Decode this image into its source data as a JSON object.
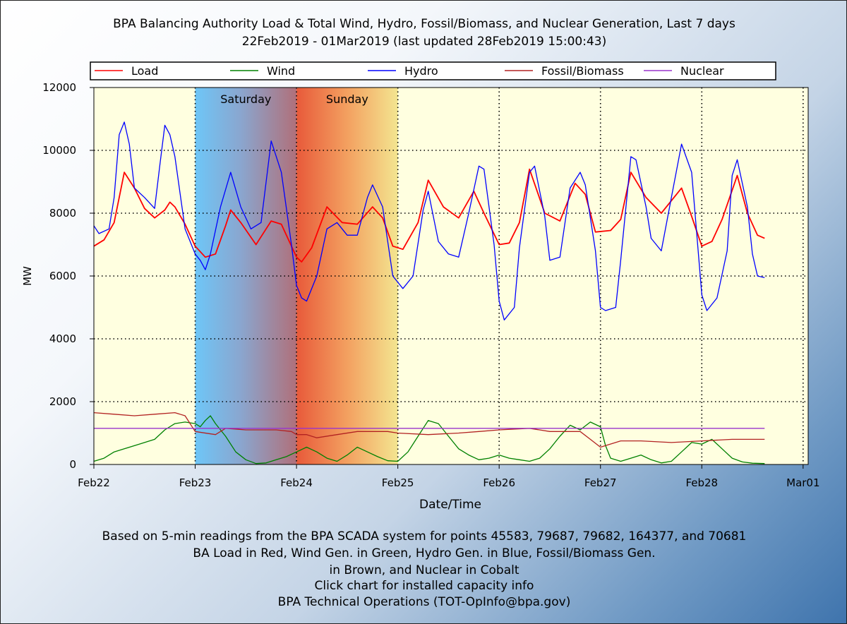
{
  "title_line1": "BPA Balancing Authority Load & Total Wind, Hydro, Fossil/Biomass, and Nuclear Generation, Last 7 days",
  "title_line2": "22Feb2019 - 01Mar2019 (last updated 28Feb2019 15:00:43)",
  "footer": [
    "Based on 5-min readings from the BPA SCADA system for points 45583, 79687, 79682, 164377, and 70681",
    "BA Load in Red, Wind Gen. in Green, Hydro Gen. in Blue, Fossil/Biomass Gen.",
    "in Brown, and Nuclear in Cobalt",
    "Click chart for installed capacity info",
    "BPA Technical Operations (TOT-OpInfo@bpa.gov)"
  ],
  "chart_data": {
    "type": "line",
    "xlabel": "Date/Time",
    "ylabel": "MW",
    "ylim": [
      0,
      12000
    ],
    "xlim": [
      0,
      7.05
    ],
    "x_unit": "days since Feb22 00:00",
    "yticks": [
      0,
      2000,
      4000,
      6000,
      8000,
      10000,
      12000
    ],
    "xticks": [
      {
        "label": "Feb22",
        "x": 0
      },
      {
        "label": "Feb23",
        "x": 1
      },
      {
        "label": "Feb24",
        "x": 2
      },
      {
        "label": "Feb25",
        "x": 3
      },
      {
        "label": "Feb26",
        "x": 4
      },
      {
        "label": "Feb27",
        "x": 5
      },
      {
        "label": "Feb28",
        "x": 6
      },
      {
        "label": "Mar01",
        "x": 7
      }
    ],
    "grid": true,
    "legend_position": "top",
    "weekend_bands": [
      {
        "label": "Saturday",
        "start": 1,
        "end": 2
      },
      {
        "label": "Sunday",
        "start": 2,
        "end": 3
      }
    ],
    "series": [
      {
        "name": "Load",
        "color": "#ff0000",
        "points": [
          [
            0,
            6950
          ],
          [
            0.1,
            7150
          ],
          [
            0.2,
            7700
          ],
          [
            0.3,
            9300
          ],
          [
            0.4,
            8800
          ],
          [
            0.5,
            8150
          ],
          [
            0.6,
            7850
          ],
          [
            0.7,
            8100
          ],
          [
            0.75,
            8350
          ],
          [
            0.8,
            8200
          ],
          [
            0.9,
            7650
          ],
          [
            1.0,
            6950
          ],
          [
            1.1,
            6600
          ],
          [
            1.2,
            6700
          ],
          [
            1.3,
            7600
          ],
          [
            1.35,
            8100
          ],
          [
            1.45,
            7700
          ],
          [
            1.6,
            7000
          ],
          [
            1.75,
            7750
          ],
          [
            1.85,
            7650
          ],
          [
            2.0,
            6600
          ],
          [
            2.05,
            6450
          ],
          [
            2.15,
            6900
          ],
          [
            2.3,
            8200
          ],
          [
            2.45,
            7700
          ],
          [
            2.6,
            7650
          ],
          [
            2.75,
            8200
          ],
          [
            2.85,
            7850
          ],
          [
            2.95,
            6950
          ],
          [
            3.05,
            6850
          ],
          [
            3.2,
            7700
          ],
          [
            3.3,
            9050
          ],
          [
            3.45,
            8200
          ],
          [
            3.6,
            7850
          ],
          [
            3.75,
            8700
          ],
          [
            3.85,
            8000
          ],
          [
            4.0,
            7000
          ],
          [
            4.1,
            7050
          ],
          [
            4.2,
            7700
          ],
          [
            4.3,
            9400
          ],
          [
            4.45,
            8000
          ],
          [
            4.6,
            7750
          ],
          [
            4.75,
            8950
          ],
          [
            4.85,
            8600
          ],
          [
            4.95,
            7400
          ],
          [
            5.1,
            7450
          ],
          [
            5.2,
            7800
          ],
          [
            5.3,
            9300
          ],
          [
            5.45,
            8500
          ],
          [
            5.6,
            8000
          ],
          [
            5.8,
            8800
          ],
          [
            5.9,
            7900
          ],
          [
            6.0,
            6950
          ],
          [
            6.1,
            7100
          ],
          [
            6.2,
            7800
          ],
          [
            6.35,
            9200
          ],
          [
            6.45,
            8000
          ],
          [
            6.55,
            7300
          ],
          [
            6.62,
            7200
          ]
        ]
      },
      {
        "name": "Wind",
        "color": "#008000",
        "points": [
          [
            0,
            100
          ],
          [
            0.1,
            200
          ],
          [
            0.2,
            400
          ],
          [
            0.3,
            500
          ],
          [
            0.45,
            650
          ],
          [
            0.6,
            800
          ],
          [
            0.7,
            1100
          ],
          [
            0.8,
            1300
          ],
          [
            0.9,
            1350
          ],
          [
            1.0,
            1300
          ],
          [
            1.05,
            1200
          ],
          [
            1.1,
            1400
          ],
          [
            1.15,
            1550
          ],
          [
            1.2,
            1300
          ],
          [
            1.3,
            900
          ],
          [
            1.4,
            400
          ],
          [
            1.5,
            150
          ],
          [
            1.6,
            30
          ],
          [
            1.7,
            50
          ],
          [
            1.8,
            150
          ],
          [
            1.9,
            250
          ],
          [
            2.0,
            400
          ],
          [
            2.1,
            550
          ],
          [
            2.2,
            400
          ],
          [
            2.3,
            200
          ],
          [
            2.4,
            100
          ],
          [
            2.5,
            300
          ],
          [
            2.6,
            550
          ],
          [
            2.7,
            400
          ],
          [
            2.8,
            250
          ],
          [
            2.9,
            120
          ],
          [
            3.0,
            100
          ],
          [
            3.1,
            400
          ],
          [
            3.2,
            900
          ],
          [
            3.3,
            1400
          ],
          [
            3.4,
            1300
          ],
          [
            3.5,
            900
          ],
          [
            3.6,
            500
          ],
          [
            3.7,
            300
          ],
          [
            3.8,
            150
          ],
          [
            3.9,
            200
          ],
          [
            4.0,
            300
          ],
          [
            4.1,
            200
          ],
          [
            4.2,
            150
          ],
          [
            4.3,
            100
          ],
          [
            4.4,
            200
          ],
          [
            4.5,
            500
          ],
          [
            4.6,
            900
          ],
          [
            4.7,
            1250
          ],
          [
            4.8,
            1100
          ],
          [
            4.9,
            1350
          ],
          [
            5.0,
            1200
          ],
          [
            5.05,
            600
          ],
          [
            5.1,
            200
          ],
          [
            5.2,
            100
          ],
          [
            5.3,
            200
          ],
          [
            5.4,
            300
          ],
          [
            5.5,
            150
          ],
          [
            5.6,
            50
          ],
          [
            5.7,
            100
          ],
          [
            5.8,
            400
          ],
          [
            5.9,
            700
          ],
          [
            6.0,
            650
          ],
          [
            6.1,
            800
          ],
          [
            6.2,
            500
          ],
          [
            6.3,
            200
          ],
          [
            6.4,
            80
          ],
          [
            6.5,
            40
          ],
          [
            6.62,
            30
          ]
        ]
      },
      {
        "name": "Hydro",
        "color": "#0000ff",
        "points": [
          [
            0,
            7600
          ],
          [
            0.05,
            7350
          ],
          [
            0.15,
            7500
          ],
          [
            0.2,
            8500
          ],
          [
            0.25,
            10500
          ],
          [
            0.3,
            10900
          ],
          [
            0.35,
            10200
          ],
          [
            0.4,
            8800
          ],
          [
            0.5,
            8500
          ],
          [
            0.6,
            8150
          ],
          [
            0.65,
            9500
          ],
          [
            0.7,
            10800
          ],
          [
            0.75,
            10500
          ],
          [
            0.8,
            9800
          ],
          [
            0.9,
            7500
          ],
          [
            1.0,
            6700
          ],
          [
            1.05,
            6500
          ],
          [
            1.1,
            6200
          ],
          [
            1.15,
            6700
          ],
          [
            1.25,
            8200
          ],
          [
            1.35,
            9300
          ],
          [
            1.45,
            8200
          ],
          [
            1.55,
            7500
          ],
          [
            1.65,
            7700
          ],
          [
            1.75,
            10300
          ],
          [
            1.85,
            9300
          ],
          [
            1.95,
            7000
          ],
          [
            2.0,
            5700
          ],
          [
            2.05,
            5300
          ],
          [
            2.1,
            5200
          ],
          [
            2.2,
            6000
          ],
          [
            2.3,
            7500
          ],
          [
            2.4,
            7700
          ],
          [
            2.5,
            7300
          ],
          [
            2.6,
            7300
          ],
          [
            2.7,
            8500
          ],
          [
            2.75,
            8900
          ],
          [
            2.85,
            8200
          ],
          [
            2.95,
            6000
          ],
          [
            3.05,
            5600
          ],
          [
            3.15,
            6000
          ],
          [
            3.25,
            8100
          ],
          [
            3.3,
            8700
          ],
          [
            3.4,
            7100
          ],
          [
            3.5,
            6700
          ],
          [
            3.6,
            6600
          ],
          [
            3.7,
            8000
          ],
          [
            3.8,
            9500
          ],
          [
            3.85,
            9400
          ],
          [
            3.95,
            7000
          ],
          [
            4.0,
            5200
          ],
          [
            4.05,
            4600
          ],
          [
            4.15,
            5000
          ],
          [
            4.2,
            6900
          ],
          [
            4.3,
            9300
          ],
          [
            4.35,
            9500
          ],
          [
            4.45,
            7900
          ],
          [
            4.5,
            6500
          ],
          [
            4.6,
            6600
          ],
          [
            4.7,
            8800
          ],
          [
            4.8,
            9300
          ],
          [
            4.85,
            8900
          ],
          [
            4.95,
            6800
          ],
          [
            5.0,
            5000
          ],
          [
            5.05,
            4900
          ],
          [
            5.15,
            5000
          ],
          [
            5.2,
            6500
          ],
          [
            5.3,
            9800
          ],
          [
            5.35,
            9700
          ],
          [
            5.45,
            8200
          ],
          [
            5.5,
            7200
          ],
          [
            5.6,
            6800
          ],
          [
            5.7,
            8500
          ],
          [
            5.8,
            10200
          ],
          [
            5.9,
            9300
          ],
          [
            6.0,
            5400
          ],
          [
            6.05,
            4900
          ],
          [
            6.15,
            5300
          ],
          [
            6.25,
            6800
          ],
          [
            6.3,
            9200
          ],
          [
            6.35,
            9700
          ],
          [
            6.45,
            8200
          ],
          [
            6.5,
            6700
          ],
          [
            6.55,
            6000
          ],
          [
            6.62,
            5950
          ]
        ]
      },
      {
        "name": "Fossil/Biomass",
        "color": "#b22222",
        "points": [
          [
            0,
            1650
          ],
          [
            0.2,
            1600
          ],
          [
            0.4,
            1550
          ],
          [
            0.6,
            1600
          ],
          [
            0.8,
            1650
          ],
          [
            0.9,
            1550
          ],
          [
            1.0,
            1050
          ],
          [
            1.2,
            950
          ],
          [
            1.3,
            1150
          ],
          [
            1.5,
            1100
          ],
          [
            1.8,
            1100
          ],
          [
            1.95,
            1050
          ],
          [
            2.0,
            950
          ],
          [
            2.1,
            950
          ],
          [
            2.2,
            850
          ],
          [
            2.4,
            950
          ],
          [
            2.6,
            1050
          ],
          [
            2.9,
            1050
          ],
          [
            3.0,
            1000
          ],
          [
            3.3,
            950
          ],
          [
            3.6,
            1000
          ],
          [
            3.8,
            1050
          ],
          [
            4.0,
            1100
          ],
          [
            4.3,
            1150
          ],
          [
            4.5,
            1050
          ],
          [
            4.8,
            1050
          ],
          [
            4.9,
            800
          ],
          [
            5.0,
            550
          ],
          [
            5.2,
            750
          ],
          [
            5.4,
            750
          ],
          [
            5.7,
            700
          ],
          [
            6.0,
            750
          ],
          [
            6.3,
            800
          ],
          [
            6.62,
            800
          ]
        ]
      },
      {
        "name": "Nuclear",
        "color": "#9933cc",
        "points": [
          [
            0,
            1150
          ],
          [
            6.62,
            1150
          ]
        ]
      }
    ]
  }
}
